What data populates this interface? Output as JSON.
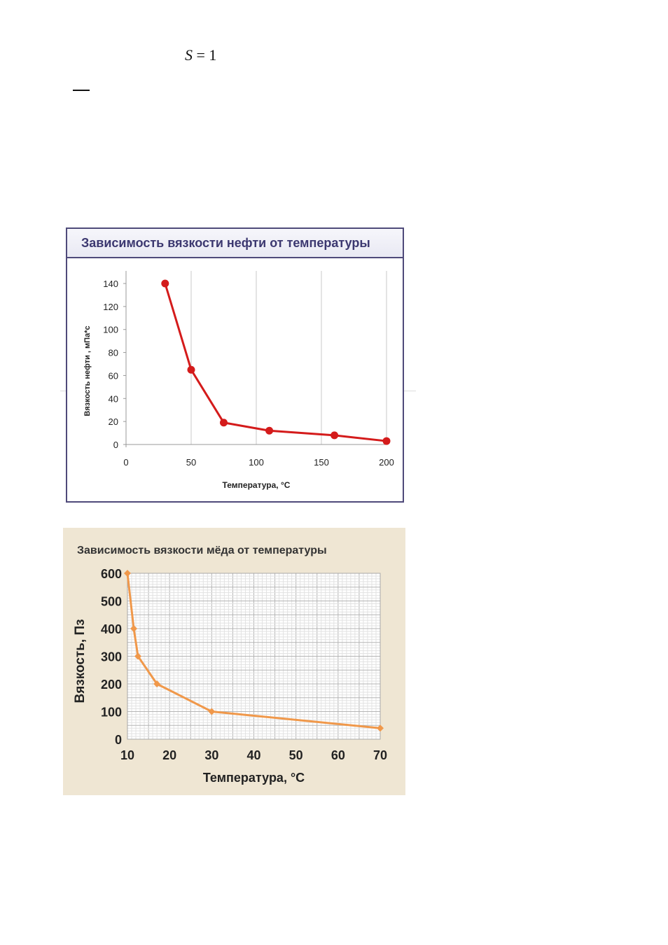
{
  "formula": {
    "var": "S",
    "rest": " = 1"
  },
  "chart_data": [
    {
      "type": "line",
      "title": "Зависимость вязкости нефти от температуры",
      "xlabel": "Температура, °С",
      "ylabel": "Вязкость нефти , мПа*с",
      "xlim": [
        0,
        200
      ],
      "ylim": [
        0,
        140
      ],
      "xticks": [
        0,
        50,
        100,
        150,
        200
      ],
      "yticks": [
        0,
        20,
        40,
        60,
        80,
        100,
        120,
        140
      ],
      "grid": "vertical",
      "color": "#d41b1b",
      "series": [
        {
          "x": [
            30,
            50,
            75,
            110,
            160,
            200
          ],
          "values": [
            140,
            65,
            19,
            12,
            8,
            3
          ]
        }
      ]
    },
    {
      "type": "line",
      "title": "Зависимость вязкости мёда от температуры",
      "xlabel": "Температура, °С",
      "ylabel": "Вязкость, Пз",
      "xlim": [
        10,
        70
      ],
      "ylim": [
        0,
        600
      ],
      "xticks": [
        10,
        20,
        30,
        40,
        50,
        60,
        70
      ],
      "yticks": [
        0,
        100,
        200,
        300,
        400,
        500,
        600
      ],
      "grid": "both",
      "color": "#f0984a",
      "series": [
        {
          "x": [
            10,
            11.5,
            12.5,
            17,
            30,
            70
          ],
          "values": [
            600,
            400,
            300,
            200,
            100,
            40
          ]
        }
      ]
    }
  ]
}
